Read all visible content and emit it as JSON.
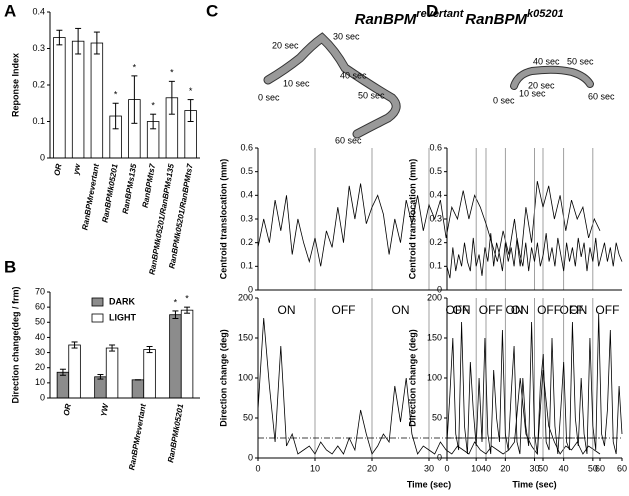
{
  "panel_labels": [
    "A",
    "B",
    "C",
    "D"
  ],
  "chart_data": [
    {
      "type": "bar",
      "ylabel": "Reponse Index",
      "categories": [
        "OR",
        "yw",
        "RanBPMrevertant",
        "RanBPMk05201",
        "RanBPMs135",
        "RanBPMts7",
        "RanBPMk05201/RanBPMs135",
        "RanBPMk05201/RanBPMts7"
      ],
      "values": [
        0.33,
        0.32,
        0.315,
        0.115,
        0.16,
        0.1,
        0.165,
        0.13
      ],
      "errors": [
        0.02,
        0.035,
        0.03,
        0.035,
        0.065,
        0.02,
        0.045,
        0.03
      ],
      "annotations": [
        null,
        null,
        null,
        "*",
        "*",
        "*",
        "*",
        "*"
      ],
      "color": "#ffffff",
      "ylim": [
        0,
        0.4
      ],
      "yticks": [
        0,
        0.1,
        0.2,
        0.3,
        0.4
      ]
    },
    {
      "type": "bar",
      "ylabel": "Direction change(deg / frm)",
      "categories": [
        "OR",
        "YW",
        "RanBPMrevertant",
        "RanBPMk05201"
      ],
      "series": [
        {
          "name": "DARK",
          "color": "#8c8c8c",
          "values": [
            17,
            14,
            12,
            55
          ],
          "errors": [
            2,
            1.5,
            0,
            2.5
          ],
          "annotations": [
            null,
            null,
            null,
            "*"
          ]
        },
        {
          "name": "LIGHT",
          "color": "#ffffff",
          "values": [
            35,
            33,
            32,
            58
          ],
          "errors": [
            2,
            2,
            2,
            2
          ],
          "annotations": [
            null,
            null,
            null,
            "*"
          ]
        }
      ],
      "legend": "top-left",
      "ylim": [
        0,
        70
      ],
      "yticks": [
        0,
        10,
        20,
        30,
        40,
        50,
        60,
        70
      ]
    },
    {
      "type": "line",
      "title": "RanBPM",
      "title_sup": "revertant",
      "ylabel": "Centroid translocation (mm)",
      "trajectory_labels": [
        "0 sec",
        "10 sec",
        "20 sec",
        "30 sec",
        "40 sec",
        "50 sec",
        "60 sec"
      ],
      "x": [
        0,
        1,
        2,
        3,
        4,
        5,
        6,
        7,
        8,
        9,
        10,
        11,
        12,
        13,
        14,
        15,
        16,
        17,
        18,
        19,
        20,
        21,
        22,
        23,
        24,
        25,
        26,
        27,
        28,
        29,
        30,
        31,
        32,
        33,
        34,
        35,
        36,
        37,
        38,
        39,
        40,
        41,
        42,
        43,
        44,
        45,
        46,
        47,
        48,
        49,
        50,
        51,
        52,
        53,
        54,
        55,
        56,
        57,
        58,
        59,
        60
      ],
      "series": [
        {
          "color": "#000000",
          "values": [
            0.18,
            0.3,
            0.2,
            0.38,
            0.25,
            0.4,
            0.15,
            0.3,
            0.2,
            0.12,
            0.22,
            0.1,
            0.25,
            0.18,
            0.35,
            0.2,
            0.44,
            0.3,
            0.45,
            0.28,
            0.35,
            0.4,
            0.32,
            0.15,
            0.3,
            0.2,
            0.38,
            0.28,
            0.4,
            0.25,
            0.36,
            0.3,
            0.38,
            0.22,
            0.35,
            0.3,
            0.42,
            0.3,
            0.4,
            0.35,
            0.28,
            0.2,
            0.12,
            0.25,
            0.15,
            0.3,
            0.1,
            0.35,
            0.2,
            0.46,
            0.35,
            0.44,
            0.3,
            0.4,
            0.25,
            0.38,
            0.3,
            0.35,
            0.22,
            0.3,
            0.25
          ]
        }
      ],
      "vlines": [
        10,
        20,
        30,
        40,
        50
      ],
      "xlim": [
        0,
        60
      ],
      "ylim": [
        0,
        0.6
      ],
      "yticks": [
        0,
        0.1,
        0.2,
        0.3,
        0.4,
        0.5,
        0.6
      ]
    },
    {
      "type": "line",
      "ylabel": "Direction change (deg)",
      "xlabel": "Time (sec)",
      "phase_labels": [
        "ON",
        "OFF",
        "ON",
        "OFF",
        "ON",
        "OFF"
      ],
      "x": [
        0,
        1,
        2,
        3,
        4,
        5,
        6,
        7,
        8,
        9,
        10,
        11,
        12,
        13,
        14,
        15,
        16,
        17,
        18,
        19,
        20,
        21,
        22,
        23,
        24,
        25,
        26,
        27,
        28,
        29,
        30,
        31,
        32,
        33,
        34,
        35,
        36,
        37,
        38,
        39,
        40,
        41,
        42,
        43,
        44,
        45,
        46,
        47,
        48,
        49,
        50,
        51,
        52,
        53,
        54,
        55,
        56,
        57,
        58,
        59,
        60
      ],
      "series": [
        {
          "color": "#000000",
          "values": [
            60,
            175,
            90,
            20,
            140,
            15,
            30,
            5,
            10,
            15,
            5,
            20,
            10,
            5,
            15,
            5,
            25,
            10,
            60,
            30,
            5,
            15,
            30,
            20,
            90,
            45,
            100,
            30,
            5,
            15,
            10,
            5,
            20,
            10,
            5,
            15,
            10,
            5,
            20,
            10,
            5,
            15,
            10,
            5,
            10,
            20,
            100,
            30,
            15,
            5,
            110,
            40,
            20,
            5,
            15,
            10,
            20,
            5,
            15,
            10,
            5
          ]
        }
      ],
      "vlines": [
        10,
        20,
        30,
        40,
        50
      ],
      "hline": 25,
      "xlim": [
        0,
        60
      ],
      "xticks": [
        0,
        10,
        20,
        30,
        40,
        50,
        60
      ],
      "ylim": [
        0,
        200
      ],
      "yticks": [
        0,
        50,
        100,
        150,
        200
      ]
    },
    {
      "type": "line",
      "title": "RanBPM",
      "title_sup": "k05201",
      "ylabel": "Centroid translocation (mm)",
      "trajectory_labels": [
        "0 sec",
        "10 sec",
        "20 sec",
        "40 sec",
        "50 sec",
        "60 sec"
      ],
      "x": [
        0,
        1,
        2,
        3,
        4,
        5,
        6,
        7,
        8,
        9,
        10,
        11,
        12,
        13,
        14,
        15,
        16,
        17,
        18,
        19,
        20,
        21,
        22,
        23,
        24,
        25,
        26,
        27,
        28,
        29,
        30,
        31,
        32,
        33,
        34,
        35,
        36,
        37,
        38,
        39,
        40,
        41,
        42,
        43,
        44,
        45,
        46,
        47,
        48,
        49,
        50,
        51,
        52,
        53,
        54,
        55,
        56,
        57,
        58,
        59,
        60
      ],
      "series": [
        {
          "color": "#000000",
          "values": [
            0.1,
            0.05,
            0.18,
            0.08,
            0.15,
            0.1,
            0.2,
            0.12,
            0.08,
            0.22,
            0.1,
            0.15,
            0.06,
            0.18,
            0.12,
            0.24,
            0.1,
            0.2,
            0.15,
            0.08,
            0.2,
            0.12,
            0.18,
            0.1,
            0.22,
            0.15,
            0.1,
            0.2,
            0.08,
            0.18,
            0.12,
            0.2,
            0.1,
            0.15,
            0.24,
            0.12,
            0.18,
            0.1,
            0.22,
            0.15,
            0.08,
            0.2,
            0.12,
            0.18,
            0.1,
            0.22,
            0.14,
            0.2,
            0.08,
            0.18,
            0.12,
            0.22,
            0.1,
            0.15,
            0.2,
            0.12,
            0.18,
            0.1,
            0.2,
            0.15,
            0.12
          ]
        }
      ],
      "vlines": [
        10,
        20,
        30,
        40,
        50
      ],
      "xlim": [
        0,
        60
      ],
      "ylim": [
        0,
        0.6
      ],
      "yticks": [
        0,
        0.1,
        0.2,
        0.3,
        0.4,
        0.5,
        0.6
      ]
    },
    {
      "type": "line",
      "ylabel": "Direction change (deg)",
      "xlabel": "Time (sec)",
      "phase_labels": [
        "ON",
        "OFF",
        "ON",
        "OFF",
        "ON",
        "OFF"
      ],
      "x": [
        0,
        1,
        2,
        3,
        4,
        5,
        6,
        7,
        8,
        9,
        10,
        11,
        12,
        13,
        14,
        15,
        16,
        17,
        18,
        19,
        20,
        21,
        22,
        23,
        24,
        25,
        26,
        27,
        28,
        29,
        30,
        31,
        32,
        33,
        34,
        35,
        36,
        37,
        38,
        39,
        40,
        41,
        42,
        43,
        44,
        45,
        46,
        47,
        48,
        49,
        50,
        51,
        52,
        53,
        54,
        55,
        56,
        57,
        58,
        59,
        60
      ],
      "series": [
        {
          "color": "#000000",
          "values": [
            20,
            80,
            150,
            30,
            10,
            170,
            40,
            5,
            120,
            60,
            15,
            100,
            20,
            150,
            30,
            5,
            110,
            50,
            20,
            160,
            30,
            10,
            80,
            140,
            20,
            5,
            100,
            40,
            15,
            170,
            30,
            5,
            90,
            130,
            20,
            10,
            150,
            40,
            5,
            60,
            120,
            20,
            10,
            170,
            50,
            15,
            100,
            30,
            5,
            150,
            40,
            10,
            180,
            30,
            15,
            60,
            160,
            20,
            5,
            90,
            30
          ]
        }
      ],
      "vlines": [
        10,
        20,
        30,
        40,
        50
      ],
      "hline": 25,
      "xlim": [
        0,
        60
      ],
      "xticks": [
        0,
        10,
        20,
        30,
        40,
        50,
        60
      ],
      "ylim": [
        0,
        200
      ],
      "yticks": [
        0,
        50,
        100,
        150,
        200
      ]
    }
  ]
}
